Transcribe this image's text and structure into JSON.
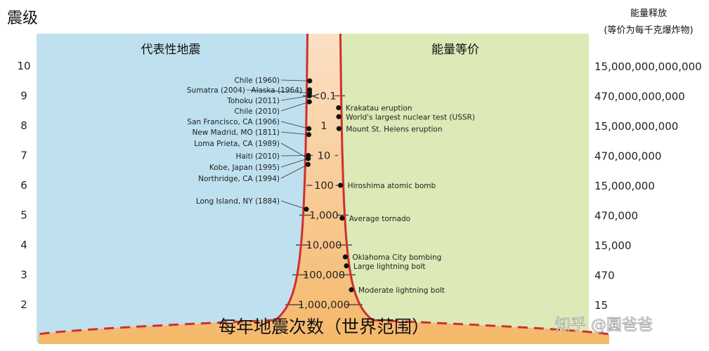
{
  "y_axis_title": "震级",
  "left_panel_title": "代表性地震",
  "right_panel_title": "能量等价",
  "energy_header": {
    "line1": "能量释放",
    "line2": "(等价为每千克爆炸物)"
  },
  "bottom_title": "每年地震次数（世界范围）",
  "watermark": "知乎 @圆爸爸",
  "colors": {
    "left_bg": "#bfe0ee",
    "right_bg": "#dde9b7",
    "funnel_top": "#fbe0c5",
    "funnel_bottom": "#f5b86a",
    "curve": "#cf2f2f"
  },
  "magnitudes": [
    "10",
    "9",
    "8",
    "7",
    "6",
    "5",
    "4",
    "3",
    "2"
  ],
  "energy_values": [
    "15,000,000,000,000",
    "470,000,000,000",
    "15,000,000,000",
    "470,000,000",
    "15,000,000",
    "470,000",
    "15,000",
    "470",
    "15"
  ],
  "frequency": [
    {
      "label": "<0.1",
      "mag": 9
    },
    {
      "label": "1",
      "mag": 8
    },
    {
      "label": "10",
      "mag": 7
    },
    {
      "label": "100",
      "mag": 6
    },
    {
      "label": "1,000",
      "mag": 5
    },
    {
      "label": "10,000",
      "mag": 4
    },
    {
      "label": "100,000",
      "mag": 3
    },
    {
      "label": "1,000,000",
      "mag": 2
    }
  ],
  "earthquakes": [
    {
      "label": "Chile (1960)",
      "mag": 9.5
    },
    {
      "label": "Sumatra (2004)",
      "mag": 9.1
    },
    {
      "label": "Alaska (1964)",
      "mag": 9.2
    },
    {
      "label": "Tohoku (2011)",
      "mag": 9.0
    },
    {
      "label": "Chile (2010)",
      "mag": 8.8
    },
    {
      "label": "San Francisco, CA (1906)",
      "mag": 7.9
    },
    {
      "label": "New Madrid, MO (1811)",
      "mag": 7.7
    },
    {
      "label": "Loma Prieta, CA (1989)",
      "mag": 6.9
    },
    {
      "label": "Haiti (2010)",
      "mag": 7.0
    },
    {
      "label": "Kobe, Japan (1995)",
      "mag": 6.9
    },
    {
      "label": "Northridge, CA (1994)",
      "mag": 6.7
    },
    {
      "label": "Long Island, NY (1884)",
      "mag": 5.2
    }
  ],
  "energy_events": [
    {
      "label": "Krakatau eruption",
      "mag": 8.6
    },
    {
      "label": "World's largest nuclear test (USSR)",
      "mag": 8.3
    },
    {
      "label": "Mount St. Helens eruption",
      "mag": 7.9
    },
    {
      "label": "Hiroshima atomic bomb",
      "mag": 6.0
    },
    {
      "label": "Average tornado",
      "mag": 4.9
    },
    {
      "label": "Oklahoma City bombing",
      "mag": 3.6
    },
    {
      "label": "Large lightning bolt",
      "mag": 3.3
    },
    {
      "label": "Moderate lightning bolt",
      "mag": 2.5
    }
  ]
}
